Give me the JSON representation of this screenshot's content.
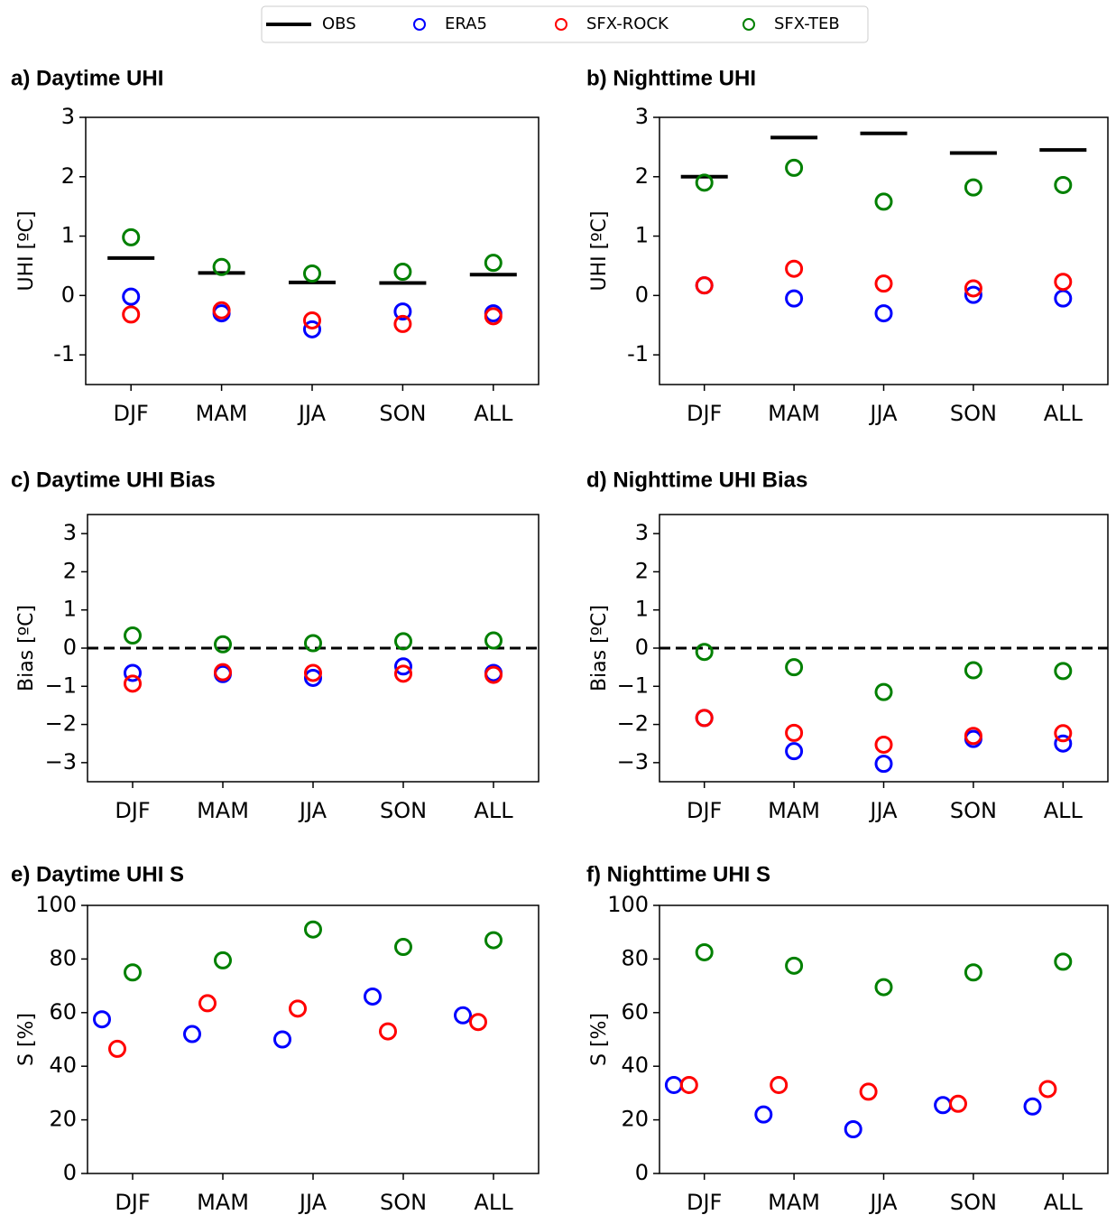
{
  "chart_data": [
    {
      "type": "scatter",
      "title": "a) Daytime UHI",
      "y_label": "UHI [ºC]",
      "categories": [
        "DJF",
        "MAM",
        "JJA",
        "SON",
        "ALL"
      ],
      "ylim": [
        -1.5,
        3
      ],
      "yticks": [
        -1,
        0,
        1,
        2,
        3
      ],
      "series": [
        {
          "name": "OBS",
          "color": "#000000",
          "marker": "hline",
          "values": [
            0.63,
            0.38,
            0.22,
            0.21,
            0.35
          ]
        },
        {
          "name": "ERA5",
          "color": "#0000ff",
          "marker": "o",
          "values": [
            -0.02,
            -0.3,
            -0.57,
            -0.27,
            -0.3
          ]
        },
        {
          "name": "SFX-ROCK",
          "color": "#ff0000",
          "marker": "o",
          "values": [
            -0.32,
            -0.25,
            -0.42,
            -0.48,
            -0.35
          ]
        },
        {
          "name": "SFX-TEB",
          "color": "#008000",
          "marker": "o",
          "values": [
            0.98,
            0.48,
            0.37,
            0.4,
            0.55
          ]
        }
      ]
    },
    {
      "type": "scatter",
      "title": "b) Nighttime UHI",
      "y_label": "UHI [ºC]",
      "categories": [
        "DJF",
        "MAM",
        "JJA",
        "SON",
        "ALL"
      ],
      "ylim": [
        -1.5,
        3
      ],
      "yticks": [
        -1,
        0,
        1,
        2,
        3
      ],
      "series": [
        {
          "name": "OBS",
          "color": "#000000",
          "marker": "hline",
          "values": [
            2.0,
            2.66,
            2.73,
            2.4,
            2.45
          ]
        },
        {
          "name": "ERA5",
          "color": "#0000ff",
          "marker": "o",
          "values": [
            0.17,
            -0.05,
            -0.3,
            0.01,
            -0.05
          ]
        },
        {
          "name": "SFX-ROCK",
          "color": "#ff0000",
          "marker": "o",
          "values": [
            0.17,
            0.45,
            0.2,
            0.12,
            0.23
          ]
        },
        {
          "name": "SFX-TEB",
          "color": "#008000",
          "marker": "o",
          "values": [
            1.9,
            2.15,
            1.58,
            1.82,
            1.86
          ]
        }
      ]
    },
    {
      "type": "scatter",
      "title": "c) Daytime UHI Bias",
      "y_label": "Bias [ºC]",
      "categories": [
        "DJF",
        "MAM",
        "JJA",
        "SON",
        "ALL"
      ],
      "ylim": [
        -3.5,
        3.5
      ],
      "yticks": [
        {
          "value": -3,
          "label": "−3"
        },
        {
          "value": -2,
          "label": "−2"
        },
        {
          "value": -1,
          "label": "−1"
        },
        0,
        1,
        2,
        3
      ],
      "hline": {
        "y": 0,
        "style": "dashed"
      },
      "series": [
        {
          "name": "ERA5",
          "color": "#0000ff",
          "marker": "o",
          "values": [
            -0.65,
            -0.68,
            -0.78,
            -0.48,
            -0.65
          ]
        },
        {
          "name": "SFX-ROCK",
          "color": "#ff0000",
          "marker": "o",
          "values": [
            -0.93,
            -0.63,
            -0.65,
            -0.67,
            -0.7
          ]
        },
        {
          "name": "SFX-TEB",
          "color": "#008000",
          "marker": "o",
          "values": [
            0.33,
            0.1,
            0.13,
            0.18,
            0.2
          ]
        }
      ]
    },
    {
      "type": "scatter",
      "title": "d) Nighttime UHI Bias",
      "y_label": "Bias [ºC]",
      "categories": [
        "DJF",
        "MAM",
        "JJA",
        "SON",
        "ALL"
      ],
      "ylim": [
        -3.5,
        3.5
      ],
      "yticks": [
        {
          "value": -3,
          "label": "−3"
        },
        {
          "value": -2,
          "label": "−2"
        },
        {
          "value": -1,
          "label": "−1"
        },
        0,
        1,
        2,
        3
      ],
      "hline": {
        "y": 0,
        "style": "dashed"
      },
      "series": [
        {
          "name": "ERA5",
          "color": "#0000ff",
          "marker": "o",
          "values": [
            -1.83,
            -2.7,
            -3.03,
            -2.38,
            -2.5
          ]
        },
        {
          "name": "SFX-ROCK",
          "color": "#ff0000",
          "marker": "o",
          "values": [
            -1.83,
            -2.22,
            -2.53,
            -2.3,
            -2.23
          ]
        },
        {
          "name": "SFX-TEB",
          "color": "#008000",
          "marker": "o",
          "values": [
            -0.1,
            -0.5,
            -1.15,
            -0.58,
            -0.6
          ]
        }
      ]
    },
    {
      "type": "scatter",
      "title": "e) Daytime UHI S",
      "y_label": "S [%]",
      "dodge": true,
      "categories": [
        "DJF",
        "MAM",
        "JJA",
        "SON",
        "ALL"
      ],
      "ylim": [
        0,
        100
      ],
      "yticks": [
        0,
        20,
        40,
        60,
        80,
        100
      ],
      "series": [
        {
          "name": "ERA5",
          "color": "#0000ff",
          "marker": "o",
          "values": [
            57.5,
            52,
            50,
            66,
            59
          ]
        },
        {
          "name": "SFX-ROCK",
          "color": "#ff0000",
          "marker": "o",
          "values": [
            46.5,
            63.5,
            61.5,
            53,
            56.5
          ]
        },
        {
          "name": "SFX-TEB",
          "color": "#008000",
          "marker": "o",
          "values": [
            75,
            79.5,
            91,
            84.5,
            87
          ]
        }
      ]
    },
    {
      "type": "scatter",
      "title": "f) Nighttime UHI S",
      "y_label": "S [%]",
      "dodge": true,
      "categories": [
        "DJF",
        "MAM",
        "JJA",
        "SON",
        "ALL"
      ],
      "ylim": [
        0,
        100
      ],
      "yticks": [
        0,
        20,
        40,
        60,
        80,
        100
      ],
      "series": [
        {
          "name": "ERA5",
          "color": "#0000ff",
          "marker": "o",
          "values": [
            33,
            22,
            16.5,
            25.5,
            25
          ]
        },
        {
          "name": "SFX-ROCK",
          "color": "#ff0000",
          "marker": "o",
          "values": [
            33,
            33,
            30.5,
            26,
            31.5
          ]
        },
        {
          "name": "SFX-TEB",
          "color": "#008000",
          "marker": "o",
          "values": [
            82.5,
            77.5,
            69.5,
            75,
            79
          ]
        }
      ]
    }
  ]
}
